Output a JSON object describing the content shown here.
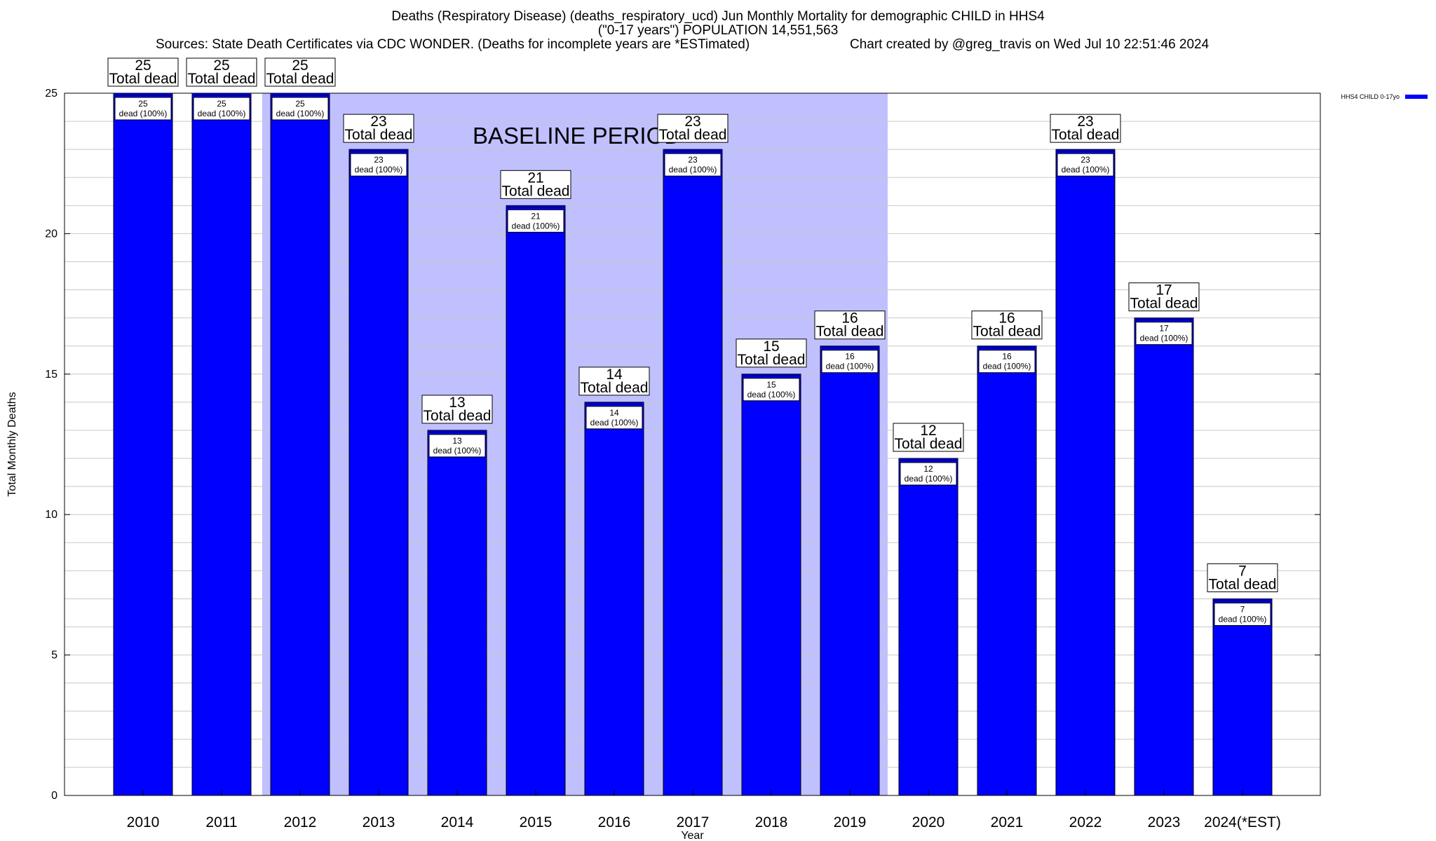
{
  "header": {
    "title_line1": "Deaths (Respiratory Disease) (deaths_respiratory_ucd) Jun Monthly Mortality for demographic CHILD in HHS4",
    "title_line2": "(\"0-17 years\") POPULATION 14,551,563",
    "sources": "Sources: State Death Certificates via CDC WONDER. (Deaths for incomplete years are *ESTimated)",
    "credit": "Chart created by @greg_travis on Wed Jul 10 22:51:46 2024"
  },
  "chart_data": {
    "type": "bar",
    "xlabel": "Year",
    "ylabel": "Total Monthly Deaths",
    "ylim": [
      0,
      25
    ],
    "y_ticks": [
      0,
      5,
      10,
      15,
      20,
      25
    ],
    "grid": true,
    "legend": {
      "position": "top-right",
      "entries": [
        "HHS4 CHILD 0-17yo"
      ]
    },
    "categories": [
      "2010",
      "2011",
      "2012",
      "2013",
      "2014",
      "2015",
      "2016",
      "2017",
      "2018",
      "2019",
      "2020",
      "2021",
      "2022",
      "2023",
      "2024(*EST)"
    ],
    "series": [
      {
        "name": "HHS4 CHILD 0-17yo",
        "color": "#0000ff",
        "values": [
          25,
          25,
          25,
          23,
          13,
          21,
          14,
          23,
          15,
          16,
          12,
          16,
          23,
          17,
          7
        ]
      }
    ],
    "total_label_text": "Total dead",
    "inner_label_text": "dead (100%)",
    "baseline_period": {
      "label": "BASELINE PERIOD",
      "from": "2012",
      "to": "2019",
      "color": "#c0c0ff"
    }
  }
}
